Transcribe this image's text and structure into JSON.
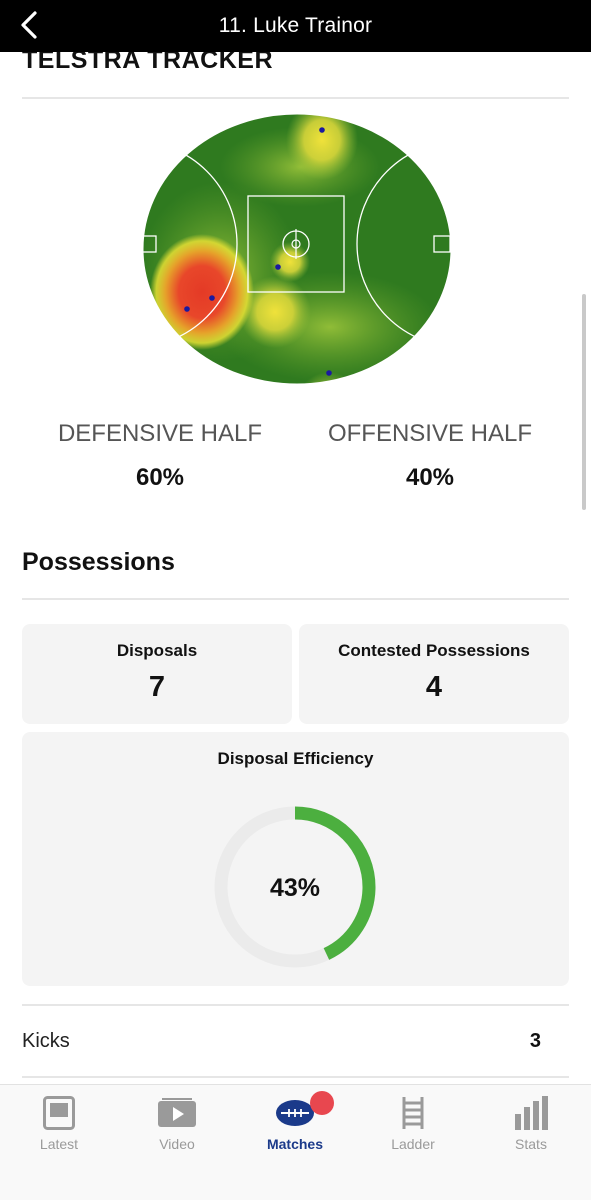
{
  "header": {
    "title": "11. Luke Trainor"
  },
  "tracker": {
    "heading": "TELSTRA TRACKER",
    "defensive_label": "DEFENSIVE HALF",
    "defensive_value": "60%",
    "offensive_label": "OFFENSIVE HALF",
    "offensive_value": "40%"
  },
  "possessions": {
    "heading": "Possessions",
    "disposals_label": "Disposals",
    "disposals_value": "7",
    "contested_label": "Contested Possessions",
    "contested_value": "4",
    "efficiency_label": "Disposal Efficiency",
    "efficiency_value": "43%",
    "efficiency_fraction": 0.43
  },
  "rows": {
    "kicks_label": "Kicks",
    "kicks_value": "3"
  },
  "tabs": [
    {
      "label": "Latest",
      "icon": "tablet-icon"
    },
    {
      "label": "Video",
      "icon": "play-icon"
    },
    {
      "label": "Matches",
      "icon": "football-icon"
    },
    {
      "label": "Ladder",
      "icon": "ladder-icon"
    },
    {
      "label": "Stats",
      "icon": "bar-chart-icon"
    }
  ],
  "colors": {
    "accent": "#1b3a8a",
    "efficiency_ring": "#4caf3f",
    "badge": "#e8474f",
    "field_green": "#2f7a1f"
  }
}
